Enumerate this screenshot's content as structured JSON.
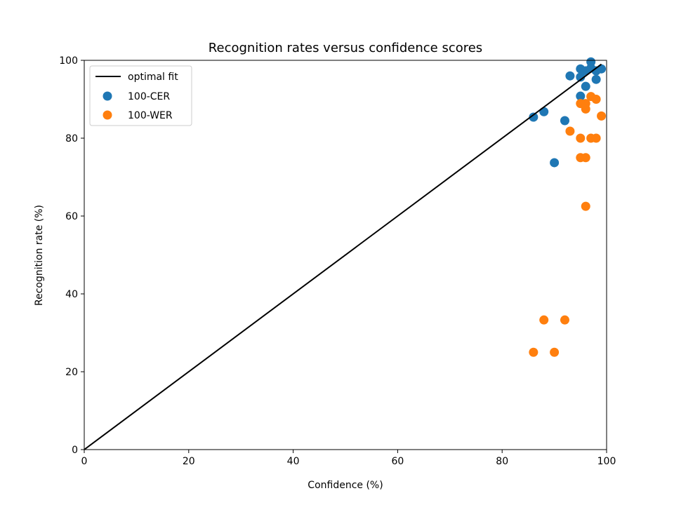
{
  "chart_data": {
    "type": "scatter",
    "title": "Recognition rates versus confidence scores",
    "xlabel": "Confidence (%)",
    "ylabel": "Recognition rate (%)",
    "xlim": [
      0,
      100
    ],
    "ylim": [
      0,
      100
    ],
    "xticks": [
      0,
      20,
      40,
      60,
      80,
      100
    ],
    "yticks": [
      0,
      20,
      40,
      60,
      80,
      100
    ],
    "grid": false,
    "legend_position": "top-left",
    "line": {
      "name": "optimal fit",
      "color": "#000000",
      "x": [
        0,
        99
      ],
      "y": [
        0,
        99
      ]
    },
    "series": [
      {
        "name": "100-CER",
        "color": "#1f77b4",
        "x": [
          86,
          88,
          90,
          92,
          93,
          95,
          95,
          95,
          96,
          96,
          97,
          98,
          98,
          99,
          97
        ],
        "y": [
          85.4,
          86.8,
          73.7,
          84.5,
          96,
          97.8,
          95.7,
          90.8,
          93.3,
          97.3,
          99.6,
          95.1,
          97.3,
          97.8,
          98
        ]
      },
      {
        "name": "100-WER",
        "color": "#ff7f0e",
        "x": [
          86,
          88,
          90,
          92,
          93,
          95,
          95,
          95,
          96,
          96,
          96,
          96,
          97,
          97,
          98,
          98,
          99
        ],
        "y": [
          25,
          33.3,
          25,
          33.3,
          81.8,
          80,
          75,
          88.9,
          75,
          62.5,
          87.5,
          88.9,
          90.7,
          80,
          90,
          80,
          85.7
        ]
      }
    ]
  }
}
